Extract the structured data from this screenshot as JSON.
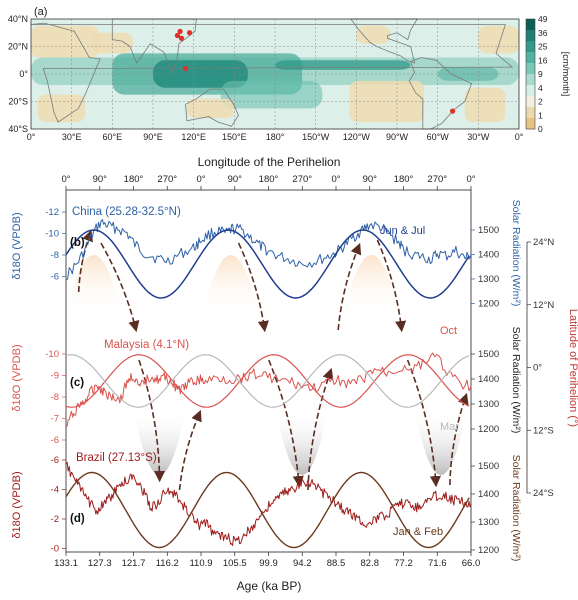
{
  "chart_data": [
    {
      "panel": "(a)",
      "type": "heatmap",
      "description_label": "(a)",
      "lat_ticks": [
        "40°N",
        "20°N",
        "0°",
        "20°S",
        "40°S"
      ],
      "lon_ticks": [
        "0°",
        "30°E",
        "60°E",
        "90°E",
        "120°E",
        "150°E",
        "180°",
        "150°W",
        "120°W",
        "90°W",
        "60°W",
        "30°W",
        "0°"
      ],
      "colorbar": {
        "unit": "[cm/month]",
        "ticks": [
          "49",
          "36",
          "25",
          "16",
          "9",
          "4",
          "2",
          "1",
          "0"
        ],
        "colors": [
          "#0b5e55",
          "#1e7f72",
          "#33998a",
          "#52b2a2",
          "#7ac8b8",
          "#a9dccf",
          "#d6eee7",
          "#f3efe0",
          "#ecd9ad",
          "#e3c385"
        ]
      },
      "site_markers": [
        {
          "name": "China",
          "lon": 110,
          "lat": 31
        },
        {
          "name": "China",
          "lon": 117,
          "lat": 30
        },
        {
          "name": "China",
          "lon": 111,
          "lat": 26
        },
        {
          "name": "China",
          "lon": 108,
          "lat": 28
        },
        {
          "name": "Malaysia",
          "lon": 114,
          "lat": 4
        },
        {
          "name": "Brazil",
          "lon": -49,
          "lat": -27
        }
      ]
    },
    {
      "panel": "(b)-(d)",
      "type": "line",
      "top_axis_label": "Longitude of the Perihelion",
      "top_ticks": [
        "0°",
        "90°",
        "180°",
        "270°",
        "0°",
        "90°",
        "180°",
        "270°",
        "0°",
        "90°",
        "180°",
        "270°",
        "0°"
      ],
      "xlabel": "Age (ka BP)",
      "x_ticks": [
        "133.1",
        "127.3",
        "121.7",
        "116.2",
        "110.9",
        "105.5",
        "99.9",
        "94.2",
        "88.5",
        "82.8",
        "77.2",
        "71.6",
        "66.0"
      ],
      "xlim": [
        133.1,
        66.0
      ],
      "right_lat_label": "Latitude of Perihelion (°)",
      "right_lat_ticks": [
        "24°N",
        "12°N",
        "0°",
        "12°S",
        "24°S"
      ],
      "panels": [
        {
          "tag": "(b)",
          "site_label": "China (25.28-32.5°N)",
          "ylabel": "δ18O (VPDB)",
          "y_ticks": [
            "-12",
            "-10",
            "-8",
            "-6"
          ],
          "ylim": [
            -5.5,
            -12.5
          ],
          "color": "#2f62a8",
          "radiation_label": "Solar Radiation (W/m²)",
          "radiation_ticks": [
            "1500",
            "1400",
            "1300",
            "1200"
          ],
          "radiation_range": [
            1270,
            1460
          ],
          "radiation_color": "#1f3f8e",
          "season_label": "Jun & Jul",
          "proxy": {
            "x": [
              133.1,
              131.5,
              130,
              128.5,
              127.3,
              126,
              124.5,
              123,
              121.7,
              120,
              118,
              116.2,
              114,
              112,
              110.9,
              109.5,
              108,
              106.5,
              105.5,
              104,
              102.5,
              101,
              99.9,
              98,
              96,
              94.2,
              92,
              90,
              88.5,
              87,
              85.5,
              84,
              82.8,
              81,
              79.5,
              78,
              77.2,
              75.5,
              74,
              72.5,
              71.6,
              70,
              68.5,
              67,
              66.0
            ],
            "y": [
              -6.8,
              -7.6,
              -8.8,
              -10.3,
              -11.1,
              -10.8,
              -10.6,
              -10.2,
              -9.3,
              -8.6,
              -8.2,
              -8.0,
              -8.6,
              -9.0,
              -9.6,
              -10.1,
              -10.4,
              -10.2,
              -10.6,
              -10.5,
              -9.9,
              -9.2,
              -8.9,
              -8.4,
              -8.1,
              -7.8,
              -7.9,
              -8.3,
              -8.6,
              -9.2,
              -9.9,
              -10.5,
              -10.9,
              -10.7,
              -10.1,
              -9.5,
              -8.9,
              -8.5,
              -8.3,
              -8.1,
              -8.6,
              -8.4,
              -8.8,
              -8.2,
              -8.5
            ]
          },
          "insolation": {
            "amplitude_phase_deg": 90,
            "min": 1270,
            "max": 1460
          }
        },
        {
          "tag": "(c)",
          "site_label": "Malaysia (4.1°N)",
          "ylabel": "δ18O (VPDB)",
          "y_ticks": [
            "-10",
            "-9",
            "-8",
            "-7",
            "-6"
          ],
          "ylim": [
            -5.5,
            -10.5
          ],
          "color": "#d9534f",
          "radiation_label": "Solar Radiation (W/m²)",
          "radiation_ticks": [
            "1500",
            "1400",
            "1300",
            "1200"
          ],
          "oct_label": "Oct",
          "mar_label": "Mar",
          "oct_color": "#d9534f",
          "mar_color": "#b9b9b9",
          "proxy": {
            "x": [
              133.1,
              132,
              131,
              130,
              129,
              128,
              127,
              126,
              125,
              124,
              123,
              122,
              121,
              120,
              119,
              118,
              117,
              116,
              115,
              114,
              113,
              112,
              111,
              110,
              108,
              106,
              104,
              102,
              100,
              98,
              96,
              94,
              92,
              90,
              88,
              86,
              84,
              82,
              80,
              78,
              76,
              74,
              72,
              70,
              68,
              66
            ],
            "y": [
              -6.6,
              -7.2,
              -7.6,
              -7.8,
              -8.2,
              -8.6,
              -8.3,
              -8.1,
              -8.0,
              -7.9,
              -8.7,
              -9.0,
              -8.4,
              -8.7,
              -9.0,
              -8.8,
              -8.9,
              -8.8,
              -8.5,
              -8.3,
              -8.6,
              -8.7,
              -8.8,
              -8.7,
              -8.9,
              -8.8,
              -8.9,
              -9.1,
              -9.0,
              -8.8,
              -8.7,
              -8.5,
              -8.4,
              -8.6,
              -8.8,
              -8.6,
              -8.8,
              -9.3,
              -9.1,
              -9.3,
              -9.4,
              -9.5,
              -10.1,
              -9.2,
              -8.6,
              -8.5
            ]
          }
        },
        {
          "tag": "(d)",
          "site_label": "Brazil (27.13°S)",
          "ylabel": "δ18O (VPDB)",
          "y_ticks": [
            "-6",
            "-4",
            "-2",
            "-0"
          ],
          "ylim": [
            0.5,
            -6.5
          ],
          "color": "#9e1b1b",
          "radiation_label": "Solar Radiation (W/m²)",
          "radiation_ticks": [
            "1500",
            "1400",
            "1300",
            "1200"
          ],
          "radiation_color": "#6b3a1c",
          "season_label": "Jan & Feb",
          "proxy": {
            "x": [
              133.1,
              132,
              131,
              130,
              129,
              128,
              127,
              126,
              125,
              124,
              123,
              122,
              121,
              120,
              119,
              118,
              117,
              116,
              115,
              114,
              113,
              112,
              111,
              110,
              109,
              108,
              107,
              106,
              105,
              104,
              103,
              102,
              101,
              100,
              99,
              98,
              97,
              96,
              95,
              94,
              93,
              92,
              91,
              90,
              89,
              88,
              87,
              86,
              85,
              84,
              83,
              82,
              81,
              80,
              79,
              78,
              77,
              76,
              75,
              74,
              73,
              72,
              71,
              70,
              69,
              68,
              67,
              66
            ],
            "y": [
              -5.6,
              -5.0,
              -4.2,
              -3.6,
              -3.0,
              -2.6,
              -2.9,
              -3.4,
              -3.8,
              -4.4,
              -4.6,
              -4.9,
              -4.5,
              -3.6,
              -2.8,
              -3.0,
              -3.6,
              -3.9,
              -3.6,
              -3.0,
              -2.6,
              -2.0,
              -1.5,
              -1.8,
              -1.2,
              -0.9,
              -0.8,
              -0.6,
              -0.4,
              -0.7,
              -1.1,
              -1.6,
              -2.2,
              -2.6,
              -3.1,
              -3.4,
              -3.8,
              -3.9,
              -4.2,
              -4.4,
              -4.6,
              -4.3,
              -3.9,
              -3.6,
              -3.3,
              -3.0,
              -2.6,
              -2.4,
              -2.1,
              -1.8,
              -1.6,
              -1.9,
              -2.1,
              -2.3,
              -2.6,
              -2.9,
              -3.1,
              -3.0,
              -2.8,
              -3.0,
              -3.3,
              -3.6,
              -3.5,
              -3.6,
              -3.2,
              -3.4,
              -3.1,
              -3.0
            ]
          }
        }
      ]
    }
  ]
}
